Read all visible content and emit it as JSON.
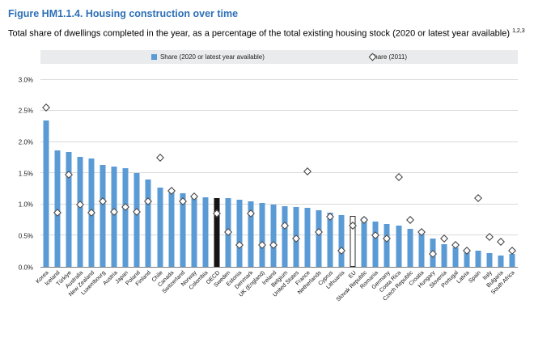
{
  "figure": {
    "title": "Figure HM1.1.4. Housing construction over time",
    "subtitle": "Total share of dwellings completed in the year, as a percentage of the total existing housing stock (2020 or latest year available) ",
    "footnote_marker": "1,2,3"
  },
  "chart_data": {
    "type": "bar",
    "title": "Housing construction over time",
    "xlabel": "",
    "ylabel": "",
    "ylim": [
      0,
      3.0
    ],
    "ytick_step": 0.5,
    "ytick_labels": [
      "0.0%",
      "0.5%",
      "1.0%",
      "1.5%",
      "2.0%",
      "2.5%",
      "3.0%"
    ],
    "grid": true,
    "legend_position": "top",
    "legend": [
      {
        "label": "Share (2020 or latest year available)",
        "marker": "square",
        "color": "#5b9bd5"
      },
      {
        "label": "Share (2011)",
        "marker": "diamond",
        "color": "#ffffff",
        "border_color": "#3c3c3c"
      }
    ],
    "bar_colors": {
      "default": "#5b9bd5",
      "OECD": "#151515",
      "EU": "#ffffff"
    },
    "categories": [
      "Korea",
      "Iceland",
      "Türkiye",
      "Australia",
      "New Zealand",
      "Luxembourg",
      "Austria",
      "Japan",
      "Poland",
      "Finland",
      "Chile",
      "Canada",
      "Switzerland",
      "Norway",
      "Colombia",
      "OECD",
      "Sweden",
      "Estonia",
      "Denmark",
      "UK (England)",
      "Ireland",
      "Belgium",
      "United States",
      "France",
      "Netherlands",
      "Cyprus",
      "Lithuania",
      "EU",
      "Slovak Republic",
      "Romania",
      "Germany",
      "Costa Rica",
      "Czech Republic",
      "Croatia",
      "Hungary",
      "Slovenia",
      "Portugal",
      "Latvia",
      "Spain",
      "Italy",
      "Bulgaria",
      "South Africa"
    ],
    "series": [
      {
        "name": "Share (2020 or latest year available)",
        "type": "bar",
        "values": [
          2.35,
          1.87,
          1.84,
          1.76,
          1.74,
          1.63,
          1.61,
          1.58,
          1.5,
          1.4,
          1.26,
          1.23,
          1.18,
          1.13,
          1.11,
          1.1,
          1.1,
          1.07,
          1.04,
          1.02,
          1.0,
          0.97,
          0.95,
          0.94,
          0.9,
          0.86,
          0.83,
          0.81,
          0.78,
          0.72,
          0.68,
          0.65,
          0.6,
          0.52,
          0.45,
          0.36,
          0.3,
          0.28,
          0.25,
          0.21,
          0.18,
          0.2
        ]
      },
      {
        "name": "Share (2011)",
        "type": "scatter",
        "marker": "diamond",
        "values": [
          2.55,
          0.87,
          1.48,
          1.0,
          0.86,
          1.05,
          0.88,
          0.95,
          0.88,
          1.05,
          1.75,
          1.22,
          1.05,
          1.12,
          null,
          0.85,
          0.55,
          0.35,
          0.85,
          0.35,
          0.35,
          0.65,
          0.45,
          1.53,
          0.55,
          0.8,
          0.25,
          0.65,
          0.75,
          0.5,
          0.45,
          1.43,
          0.75,
          0.55,
          0.2,
          0.45,
          0.35,
          0.25,
          1.1,
          0.48,
          0.4,
          0.25
        ]
      }
    ]
  }
}
